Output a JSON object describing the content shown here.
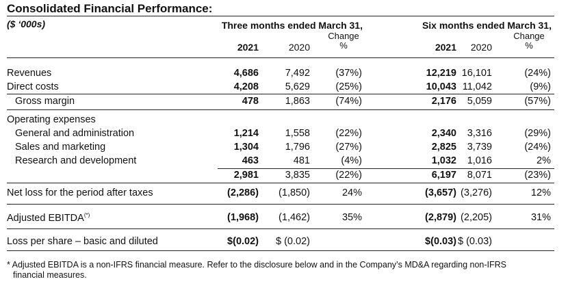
{
  "title": "Consolidated Financial Performance:",
  "units": "($ ‘000s)",
  "header": {
    "three_months": "Three months ended March 31,",
    "six_months": "Six months ended March 31,",
    "change_label": "Change",
    "percent_label": "%",
    "year_current": "2021",
    "year_prior": "2020"
  },
  "rows": [
    {
      "label": "Revenues",
      "q21": "4,686",
      "q20": "7,492",
      "qchg": "(37%)",
      "s21": "12,219",
      "s20": "16,101",
      "schg": "(24%)"
    },
    {
      "label": "Direct costs",
      "q21": "4,208",
      "q20": "5,629",
      "qchg": "(25%)",
      "s21": "10,043",
      "s20": "11,042",
      "schg": "(9%)"
    },
    {
      "label": "Gross margin",
      "q21": "478",
      "q20": "1,863",
      "qchg": "(74%)",
      "s21": "2,176",
      "s20": "5,059",
      "schg": "(57%)"
    },
    {
      "label": "Operating expenses"
    },
    {
      "label": "General and administration",
      "q21": "1,214",
      "q20": "1,558",
      "qchg": "(22%)",
      "s21": "2,340",
      "s20": "3,316",
      "schg": "(29%)"
    },
    {
      "label": "Sales and marketing",
      "q21": "1,304",
      "q20": "1,796",
      "qchg": "(27%)",
      "s21": "2,825",
      "s20": "3,739",
      "schg": "(24%)"
    },
    {
      "label": "Research and development",
      "q21": "463",
      "q20": "481",
      "qchg": "(4%)",
      "s21": "1,032",
      "s20": "1,016",
      "schg": "2%"
    },
    {
      "label": "",
      "q21": "2,981",
      "q20": "3,835",
      "qchg": "(22%)",
      "s21": "6,197",
      "s20": "8,071",
      "schg": "(23%)"
    },
    {
      "label": "Net loss for the period after taxes",
      "q21": "(2,286)",
      "q20": "(1,850)",
      "qchg": "24%",
      "s21": "(3,657)",
      "s20": "(3,276)",
      "schg": "12%"
    },
    {
      "label": "Adjusted EBITDA",
      "label_sup": "(*)",
      "q21": "(1,968)",
      "q20": "(1,462)",
      "qchg": "35%",
      "s21": "(2,879)",
      "s20": "(2,205)",
      "schg": "31%"
    },
    {
      "label": "Loss per share – basic and diluted",
      "q21": "$(0.02)",
      "q20": "$ (0.02)",
      "qchg": "",
      "s21": "$(0.03)",
      "s20": "$ (0.03)",
      "schg": ""
    }
  ],
  "footnote": {
    "line1": "* Adjusted EBITDA is a non-IFRS financial measure. Refer to the disclosure below and in the Company’s MD&A regarding non-IFRS",
    "line2": "financial measures."
  }
}
